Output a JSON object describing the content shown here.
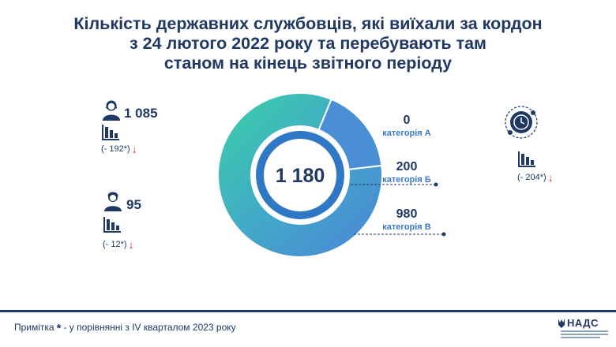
{
  "title": {
    "line1": "Кількість державних службовців, які виїхали за кордон",
    "line2": "з 24 лютого 2022 року та перебувають там",
    "line3": "станом на кінець звітного періоду"
  },
  "stats": {
    "women": {
      "value": "1 085",
      "change": "(- 192*)"
    },
    "men": {
      "value": "95",
      "change": "(- 12*)"
    },
    "total_change": "(- 204*)"
  },
  "chart_data": {
    "type": "pie",
    "total": 1180,
    "total_label": "1 180",
    "slices": [
      {
        "name": "категорія А",
        "value": 0,
        "value_label": "0",
        "color": "#4a8fd6"
      },
      {
        "name": "категорія Б",
        "value": 200,
        "value_label": "200",
        "color": "#4a8fd6"
      },
      {
        "name": "категорія В",
        "value": 980,
        "value_label": "980",
        "color": "#3cc6a4"
      }
    ]
  },
  "colors": {
    "navy": "#1f3864",
    "accent_blue": "#3a7bc8",
    "teal": "#3cc6a4",
    "arrow_red": "#d9261c"
  },
  "icons": {
    "woman": "woman-icon",
    "man": "man-icon",
    "trend": "chart-down-icon",
    "clock": "clock-globe-icon",
    "down_arrow": "↓"
  },
  "footer": {
    "note_prefix": "Примітка",
    "note_star": "*",
    "note_text": "- у порівнянні з IV кварталом 2023 року",
    "logo": "НАДС"
  }
}
